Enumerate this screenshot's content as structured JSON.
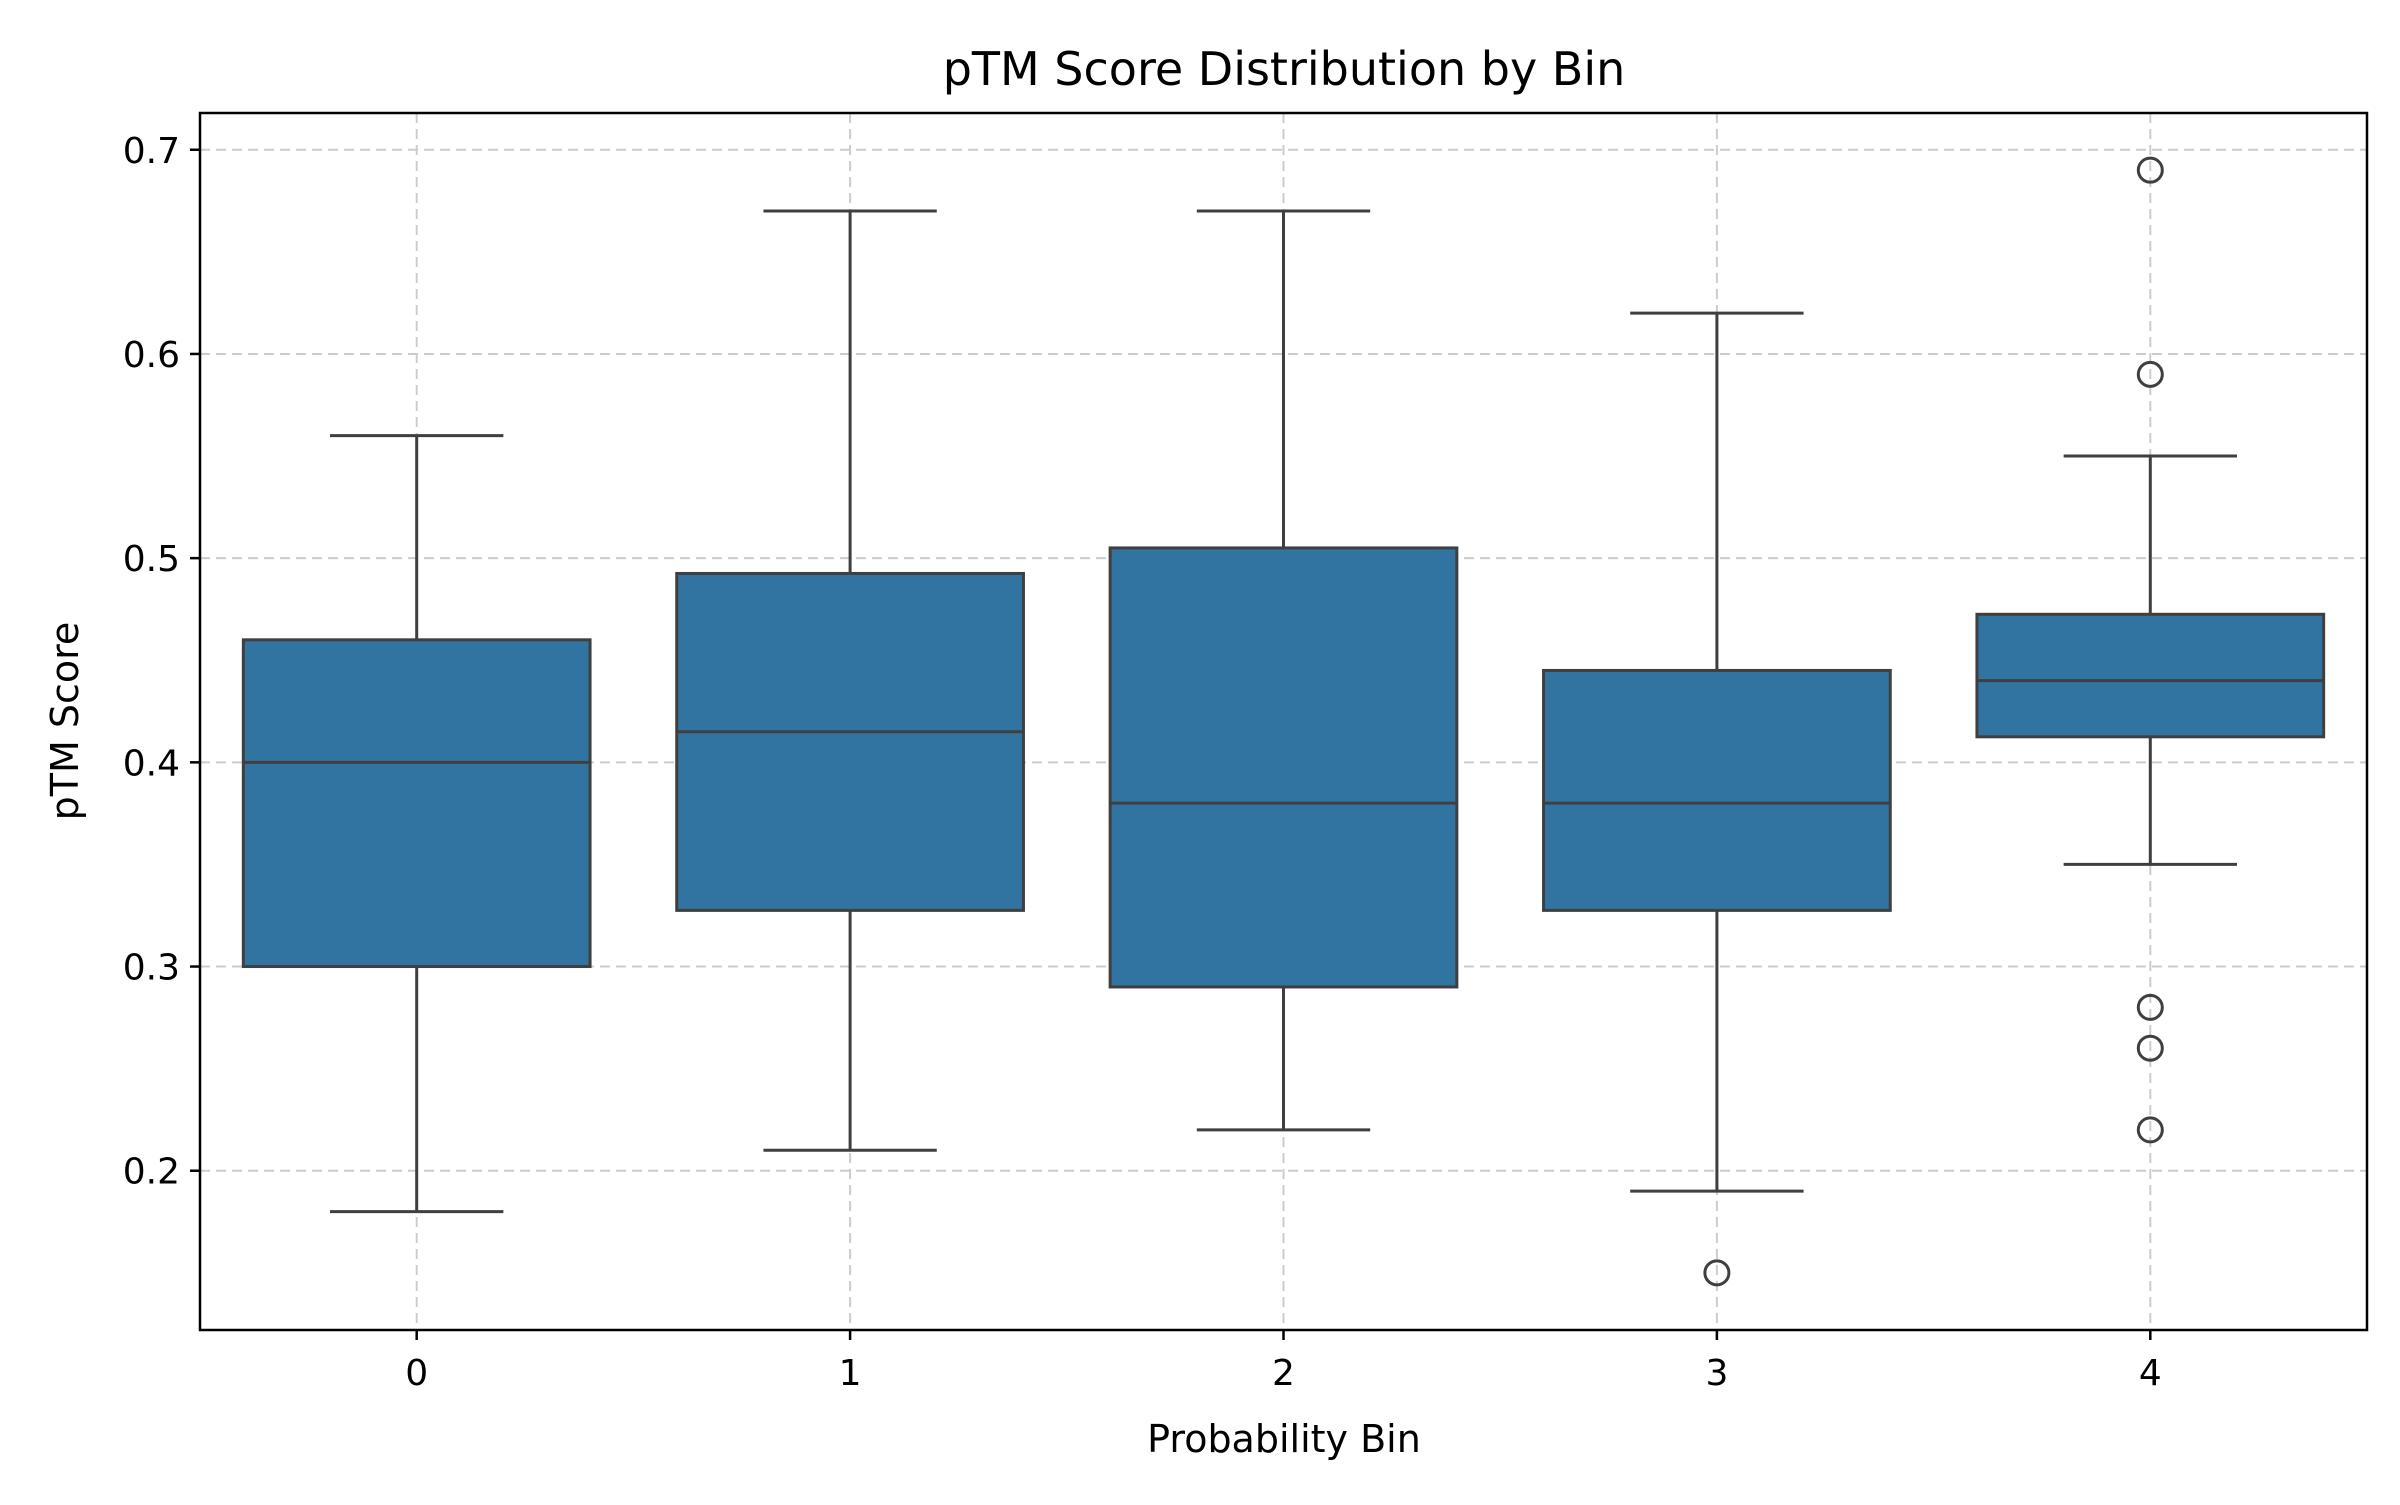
{
  "chart_data": {
    "type": "box",
    "title": "pTM Score Distribution by Bin",
    "xlabel": "Probability Bin",
    "ylabel": "pTM Score",
    "categories": [
      "0",
      "1",
      "2",
      "3",
      "4"
    ],
    "y_ticks": [
      0.2,
      0.3,
      0.4,
      0.5,
      0.6,
      0.7
    ],
    "y_tick_labels": [
      "0.2",
      "0.3",
      "0.4",
      "0.5",
      "0.6",
      "0.7"
    ],
    "ylim": [
      0.122,
      0.718
    ],
    "grid": true,
    "box_color": "#3274a1",
    "line_color": "#3f3f3f",
    "grid_color": "#cccccc",
    "boxes": [
      {
        "category": "0",
        "whisker_low": 0.18,
        "q1": 0.3,
        "median": 0.4,
        "q3": 0.46,
        "whisker_high": 0.56,
        "outliers": []
      },
      {
        "category": "1",
        "whisker_low": 0.21,
        "q1": 0.3275,
        "median": 0.415,
        "q3": 0.4925,
        "whisker_high": 0.67,
        "outliers": []
      },
      {
        "category": "2",
        "whisker_low": 0.22,
        "q1": 0.29,
        "median": 0.38,
        "q3": 0.505,
        "whisker_high": 0.67,
        "outliers": []
      },
      {
        "category": "3",
        "whisker_low": 0.19,
        "q1": 0.3275,
        "median": 0.38,
        "q3": 0.445,
        "whisker_high": 0.62,
        "outliers": [
          0.15
        ]
      },
      {
        "category": "4",
        "whisker_low": 0.35,
        "q1": 0.4125,
        "median": 0.44,
        "q3": 0.4725,
        "whisker_high": 0.55,
        "outliers": [
          0.69,
          0.59,
          0.28,
          0.26,
          0.22
        ]
      }
    ]
  }
}
